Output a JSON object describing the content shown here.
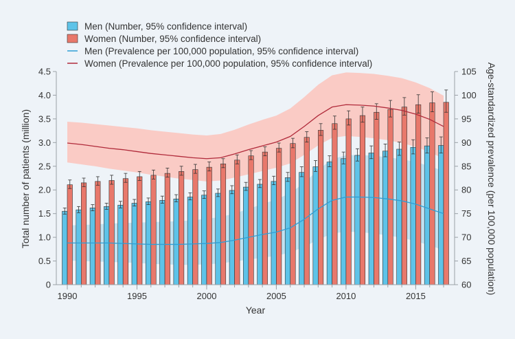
{
  "chart_data": {
    "type": "bar",
    "title": "",
    "xlabel": "Year",
    "ylabel": "Total number of patients (million)",
    "y2label": "Age-standardized prevalence (per 100,000 population)",
    "ylim": [
      0,
      4.5
    ],
    "y2lim": [
      60,
      105
    ],
    "grid": false,
    "legend_position": "top-left",
    "x_ticks": [
      "1990",
      "1995",
      "2000",
      "2005",
      "2010",
      "2015"
    ],
    "y_ticks": [
      "0",
      "0.5",
      "1.0",
      "1.5",
      "2.0",
      "2.5",
      "3.0",
      "3.5",
      "4.0",
      "4.5"
    ],
    "y2_ticks": [
      "60",
      "65",
      "70",
      "75",
      "80",
      "85",
      "90",
      "95",
      "100",
      "105"
    ],
    "years": [
      1990,
      1991,
      1992,
      1993,
      1994,
      1995,
      1996,
      1997,
      1998,
      1999,
      2000,
      2001,
      2002,
      2003,
      2004,
      2005,
      2006,
      2007,
      2008,
      2009,
      2010,
      2011,
      2012,
      2013,
      2014,
      2015,
      2016,
      2017
    ],
    "series": [
      {
        "name": "Men (Number, 95% confidence interval)",
        "kind": "bar",
        "color": "#5ec3e8",
        "values": [
          1.55,
          1.58,
          1.62,
          1.65,
          1.68,
          1.72,
          1.75,
          1.78,
          1.81,
          1.85,
          1.89,
          1.93,
          1.99,
          2.06,
          2.12,
          2.18,
          2.26,
          2.37,
          2.49,
          2.59,
          2.66,
          2.73,
          2.78,
          2.82,
          2.86,
          2.9,
          2.93,
          2.94
        ],
        "lower": [
          1.49,
          1.52,
          1.56,
          1.59,
          1.62,
          1.66,
          1.69,
          1.72,
          1.75,
          1.79,
          1.82,
          1.86,
          1.92,
          1.99,
          2.05,
          2.11,
          2.18,
          2.28,
          2.39,
          2.49,
          2.55,
          2.61,
          2.66,
          2.7,
          2.73,
          2.76,
          2.78,
          2.78
        ],
        "upper": [
          1.62,
          1.65,
          1.69,
          1.72,
          1.76,
          1.8,
          1.83,
          1.87,
          1.9,
          1.94,
          1.98,
          2.02,
          2.09,
          2.16,
          2.22,
          2.29,
          2.37,
          2.49,
          2.62,
          2.72,
          2.8,
          2.87,
          2.93,
          2.97,
          3.01,
          3.06,
          3.1,
          3.12
        ]
      },
      {
        "name": "Women (Number, 95% confidence interval)",
        "kind": "bar",
        "color": "#e8786b",
        "values": [
          2.11,
          2.15,
          2.18,
          2.2,
          2.24,
          2.28,
          2.31,
          2.35,
          2.39,
          2.43,
          2.48,
          2.55,
          2.63,
          2.72,
          2.8,
          2.88,
          2.98,
          3.11,
          3.26,
          3.4,
          3.5,
          3.57,
          3.64,
          3.7,
          3.75,
          3.8,
          3.84,
          3.85
        ],
        "lower": [
          2.03,
          2.07,
          2.1,
          2.12,
          2.16,
          2.2,
          2.23,
          2.27,
          2.31,
          2.35,
          2.4,
          2.47,
          2.55,
          2.64,
          2.72,
          2.8,
          2.89,
          3.01,
          3.15,
          3.28,
          3.37,
          3.43,
          3.49,
          3.54,
          3.58,
          3.62,
          3.65,
          3.64
        ],
        "upper": [
          2.21,
          2.25,
          2.28,
          2.31,
          2.35,
          2.39,
          2.42,
          2.46,
          2.5,
          2.54,
          2.59,
          2.66,
          2.74,
          2.83,
          2.91,
          2.99,
          3.09,
          3.23,
          3.4,
          3.56,
          3.67,
          3.75,
          3.82,
          3.89,
          3.95,
          4.01,
          4.07,
          4.11
        ]
      },
      {
        "name": "Men (Prevalence per 100,000 population, 95% confidence interval)",
        "kind": "line",
        "axis": "right",
        "color": "#2e9fd6",
        "band_color": "#b8def0",
        "values": [
          68.8,
          68.8,
          68.8,
          68.8,
          68.7,
          68.6,
          68.5,
          68.5,
          68.5,
          68.6,
          68.7,
          68.9,
          69.4,
          70.0,
          70.6,
          71.1,
          72.0,
          73.8,
          76.0,
          77.8,
          78.5,
          78.5,
          78.4,
          78.1,
          77.7,
          77.0,
          76.0,
          75.0
        ],
        "lower": [
          65.1,
          65.0,
          64.9,
          64.8,
          64.7,
          64.6,
          64.4,
          64.3,
          64.2,
          64.2,
          64.3,
          64.5,
          64.9,
          65.3,
          65.7,
          66.1,
          66.8,
          68.0,
          69.5,
          70.8,
          71.2,
          71.1,
          70.8,
          70.4,
          69.9,
          69.2,
          68.3,
          67.3
        ],
        "upper": [
          72.5,
          72.6,
          72.7,
          72.9,
          73.0,
          73.1,
          73.2,
          73.3,
          73.4,
          73.6,
          73.9,
          74.3,
          75.0,
          76.0,
          77.0,
          78.0,
          79.3,
          81.5,
          84.2,
          86.5,
          87.3,
          87.4,
          87.2,
          86.9,
          86.5,
          85.9,
          85.0,
          84.0
        ]
      },
      {
        "name": "Women (Prevalence per 100,000 population, 95% confidence interval)",
        "kind": "line",
        "axis": "right",
        "color": "#b02a3a",
        "band_color": "#fbc3bc",
        "values": [
          89.9,
          89.6,
          89.2,
          88.8,
          88.5,
          88.1,
          87.7,
          87.4,
          87.1,
          86.8,
          86.6,
          86.8,
          87.6,
          88.5,
          89.3,
          90.1,
          91.3,
          93.4,
          95.7,
          97.5,
          98.0,
          97.9,
          97.7,
          97.3,
          96.8,
          96.0,
          94.9,
          93.4
        ],
        "lower": [
          85.8,
          85.4,
          85.0,
          84.5,
          84.1,
          83.7,
          83.2,
          82.8,
          82.4,
          82.1,
          81.8,
          82.0,
          82.6,
          83.3,
          84.0,
          84.7,
          85.6,
          87.4,
          89.4,
          91.0,
          91.4,
          91.2,
          90.9,
          90.5,
          89.9,
          89.1,
          88.0,
          86.6
        ],
        "upper": [
          94.4,
          94.2,
          93.9,
          93.6,
          93.3,
          93.0,
          92.6,
          92.3,
          92.0,
          91.7,
          91.5,
          91.8,
          92.7,
          93.8,
          94.8,
          95.7,
          97.2,
          99.6,
          102.2,
          104.2,
          104.8,
          104.7,
          104.5,
          104.1,
          103.6,
          102.7,
          101.5,
          99.9
        ]
      }
    ]
  }
}
